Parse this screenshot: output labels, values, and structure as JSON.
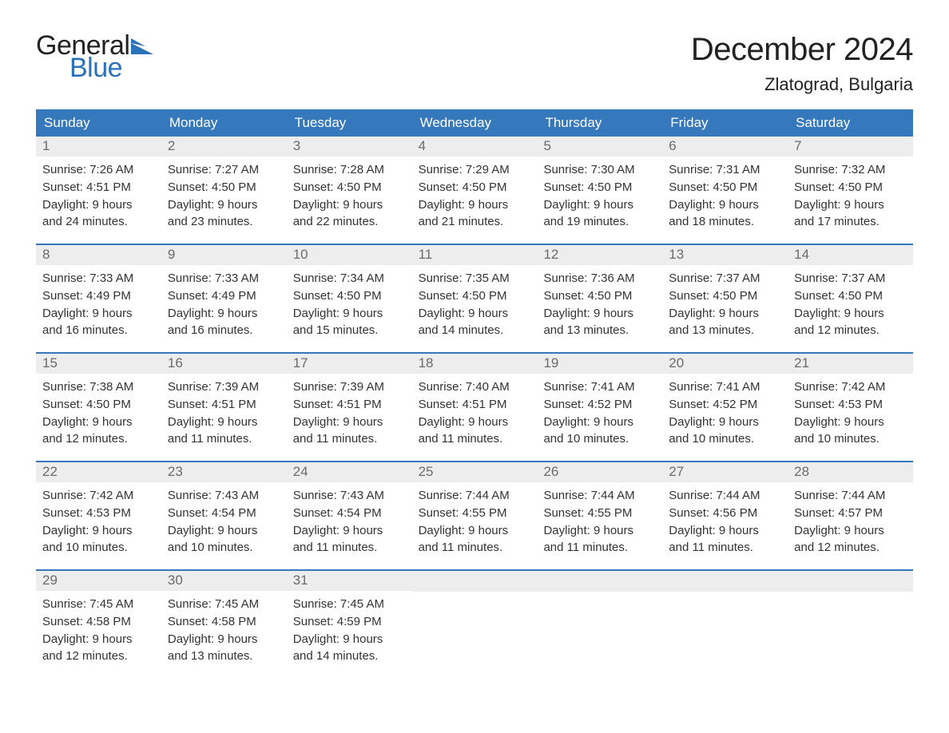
{
  "logo": {
    "text1": "General",
    "text2": "Blue",
    "flag_color": "#2b71b8"
  },
  "title": "December 2024",
  "location": "Zlatograd, Bulgaria",
  "colors": {
    "header_bg": "#3678bc",
    "header_text": "#ffffff",
    "daynum_bg": "#ededed",
    "daynum_text": "#6b6b6b",
    "body_text": "#333333",
    "page_bg": "#ffffff"
  },
  "day_headers": [
    "Sunday",
    "Monday",
    "Tuesday",
    "Wednesday",
    "Thursday",
    "Friday",
    "Saturday"
  ],
  "weeks": [
    [
      {
        "n": "1",
        "sunrise": "Sunrise: 7:26 AM",
        "sunset": "Sunset: 4:51 PM",
        "d1": "Daylight: 9 hours",
        "d2": "and 24 minutes."
      },
      {
        "n": "2",
        "sunrise": "Sunrise: 7:27 AM",
        "sunset": "Sunset: 4:50 PM",
        "d1": "Daylight: 9 hours",
        "d2": "and 23 minutes."
      },
      {
        "n": "3",
        "sunrise": "Sunrise: 7:28 AM",
        "sunset": "Sunset: 4:50 PM",
        "d1": "Daylight: 9 hours",
        "d2": "and 22 minutes."
      },
      {
        "n": "4",
        "sunrise": "Sunrise: 7:29 AM",
        "sunset": "Sunset: 4:50 PM",
        "d1": "Daylight: 9 hours",
        "d2": "and 21 minutes."
      },
      {
        "n": "5",
        "sunrise": "Sunrise: 7:30 AM",
        "sunset": "Sunset: 4:50 PM",
        "d1": "Daylight: 9 hours",
        "d2": "and 19 minutes."
      },
      {
        "n": "6",
        "sunrise": "Sunrise: 7:31 AM",
        "sunset": "Sunset: 4:50 PM",
        "d1": "Daylight: 9 hours",
        "d2": "and 18 minutes."
      },
      {
        "n": "7",
        "sunrise": "Sunrise: 7:32 AM",
        "sunset": "Sunset: 4:50 PM",
        "d1": "Daylight: 9 hours",
        "d2": "and 17 minutes."
      }
    ],
    [
      {
        "n": "8",
        "sunrise": "Sunrise: 7:33 AM",
        "sunset": "Sunset: 4:49 PM",
        "d1": "Daylight: 9 hours",
        "d2": "and 16 minutes."
      },
      {
        "n": "9",
        "sunrise": "Sunrise: 7:33 AM",
        "sunset": "Sunset: 4:49 PM",
        "d1": "Daylight: 9 hours",
        "d2": "and 16 minutes."
      },
      {
        "n": "10",
        "sunrise": "Sunrise: 7:34 AM",
        "sunset": "Sunset: 4:50 PM",
        "d1": "Daylight: 9 hours",
        "d2": "and 15 minutes."
      },
      {
        "n": "11",
        "sunrise": "Sunrise: 7:35 AM",
        "sunset": "Sunset: 4:50 PM",
        "d1": "Daylight: 9 hours",
        "d2": "and 14 minutes."
      },
      {
        "n": "12",
        "sunrise": "Sunrise: 7:36 AM",
        "sunset": "Sunset: 4:50 PM",
        "d1": "Daylight: 9 hours",
        "d2": "and 13 minutes."
      },
      {
        "n": "13",
        "sunrise": "Sunrise: 7:37 AM",
        "sunset": "Sunset: 4:50 PM",
        "d1": "Daylight: 9 hours",
        "d2": "and 13 minutes."
      },
      {
        "n": "14",
        "sunrise": "Sunrise: 7:37 AM",
        "sunset": "Sunset: 4:50 PM",
        "d1": "Daylight: 9 hours",
        "d2": "and 12 minutes."
      }
    ],
    [
      {
        "n": "15",
        "sunrise": "Sunrise: 7:38 AM",
        "sunset": "Sunset: 4:50 PM",
        "d1": "Daylight: 9 hours",
        "d2": "and 12 minutes."
      },
      {
        "n": "16",
        "sunrise": "Sunrise: 7:39 AM",
        "sunset": "Sunset: 4:51 PM",
        "d1": "Daylight: 9 hours",
        "d2": "and 11 minutes."
      },
      {
        "n": "17",
        "sunrise": "Sunrise: 7:39 AM",
        "sunset": "Sunset: 4:51 PM",
        "d1": "Daylight: 9 hours",
        "d2": "and 11 minutes."
      },
      {
        "n": "18",
        "sunrise": "Sunrise: 7:40 AM",
        "sunset": "Sunset: 4:51 PM",
        "d1": "Daylight: 9 hours",
        "d2": "and 11 minutes."
      },
      {
        "n": "19",
        "sunrise": "Sunrise: 7:41 AM",
        "sunset": "Sunset: 4:52 PM",
        "d1": "Daylight: 9 hours",
        "d2": "and 10 minutes."
      },
      {
        "n": "20",
        "sunrise": "Sunrise: 7:41 AM",
        "sunset": "Sunset: 4:52 PM",
        "d1": "Daylight: 9 hours",
        "d2": "and 10 minutes."
      },
      {
        "n": "21",
        "sunrise": "Sunrise: 7:42 AM",
        "sunset": "Sunset: 4:53 PM",
        "d1": "Daylight: 9 hours",
        "d2": "and 10 minutes."
      }
    ],
    [
      {
        "n": "22",
        "sunrise": "Sunrise: 7:42 AM",
        "sunset": "Sunset: 4:53 PM",
        "d1": "Daylight: 9 hours",
        "d2": "and 10 minutes."
      },
      {
        "n": "23",
        "sunrise": "Sunrise: 7:43 AM",
        "sunset": "Sunset: 4:54 PM",
        "d1": "Daylight: 9 hours",
        "d2": "and 10 minutes."
      },
      {
        "n": "24",
        "sunrise": "Sunrise: 7:43 AM",
        "sunset": "Sunset: 4:54 PM",
        "d1": "Daylight: 9 hours",
        "d2": "and 11 minutes."
      },
      {
        "n": "25",
        "sunrise": "Sunrise: 7:44 AM",
        "sunset": "Sunset: 4:55 PM",
        "d1": "Daylight: 9 hours",
        "d2": "and 11 minutes."
      },
      {
        "n": "26",
        "sunrise": "Sunrise: 7:44 AM",
        "sunset": "Sunset: 4:55 PM",
        "d1": "Daylight: 9 hours",
        "d2": "and 11 minutes."
      },
      {
        "n": "27",
        "sunrise": "Sunrise: 7:44 AM",
        "sunset": "Sunset: 4:56 PM",
        "d1": "Daylight: 9 hours",
        "d2": "and 11 minutes."
      },
      {
        "n": "28",
        "sunrise": "Sunrise: 7:44 AM",
        "sunset": "Sunset: 4:57 PM",
        "d1": "Daylight: 9 hours",
        "d2": "and 12 minutes."
      }
    ],
    [
      {
        "n": "29",
        "sunrise": "Sunrise: 7:45 AM",
        "sunset": "Sunset: 4:58 PM",
        "d1": "Daylight: 9 hours",
        "d2": "and 12 minutes."
      },
      {
        "n": "30",
        "sunrise": "Sunrise: 7:45 AM",
        "sunset": "Sunset: 4:58 PM",
        "d1": "Daylight: 9 hours",
        "d2": "and 13 minutes."
      },
      {
        "n": "31",
        "sunrise": "Sunrise: 7:45 AM",
        "sunset": "Sunset: 4:59 PM",
        "d1": "Daylight: 9 hours",
        "d2": "and 14 minutes."
      },
      null,
      null,
      null,
      null
    ]
  ]
}
